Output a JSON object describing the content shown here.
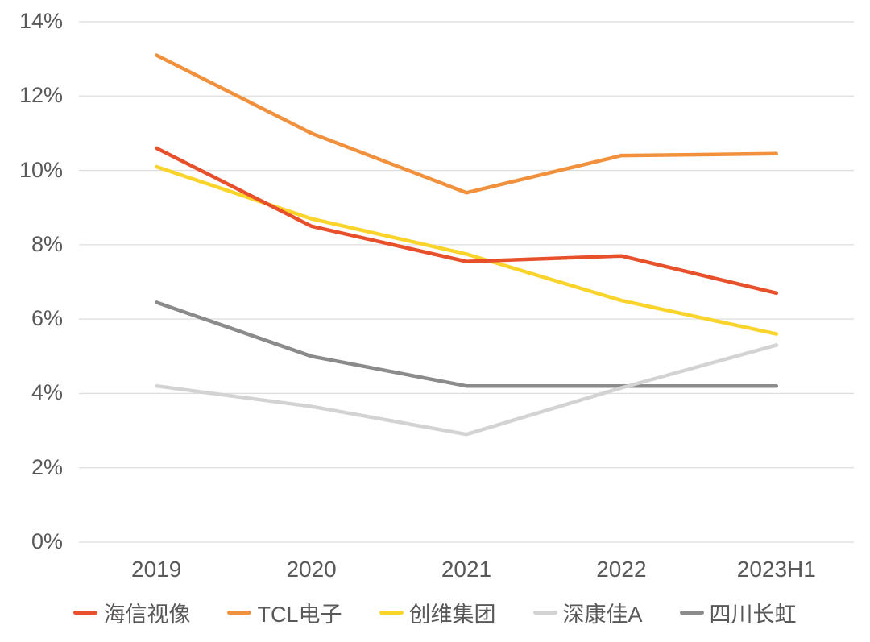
{
  "chart_data": {
    "type": "line",
    "title": "",
    "categories": [
      "2019",
      "2020",
      "2021",
      "2022",
      "2023H1"
    ],
    "series": [
      {
        "name": "海信视像",
        "color": "#E8502B",
        "values": [
          10.6,
          8.5,
          7.55,
          7.7,
          6.7
        ]
      },
      {
        "name": "TCL电子",
        "color": "#F2913D",
        "values": [
          13.1,
          11.0,
          9.4,
          10.4,
          10.45
        ]
      },
      {
        "name": "创维集团",
        "color": "#FAD32B",
        "values": [
          10.1,
          8.7,
          7.75,
          6.5,
          5.6
        ]
      },
      {
        "name": "深康佳A",
        "color": "#D3D3D3",
        "values": [
          4.2,
          3.65,
          2.9,
          4.15,
          5.3
        ]
      },
      {
        "name": "四川长虹",
        "color": "#8B8B8B",
        "values": [
          6.45,
          5.0,
          4.2,
          4.2,
          4.2
        ]
      }
    ],
    "xlabel": "",
    "ylabel": "",
    "ylim": [
      0,
      14
    ],
    "ytick_step": 2,
    "yticks": [
      "0%",
      "2%",
      "4%",
      "6%",
      "8%",
      "10%",
      "12%",
      "14%"
    ],
    "grid": true,
    "legend_position": "bottom",
    "draw_order": "reverse"
  },
  "colors": {
    "background": "#FFFFFF",
    "gridline": "#DEDEDE",
    "label_text": "#595959"
  }
}
